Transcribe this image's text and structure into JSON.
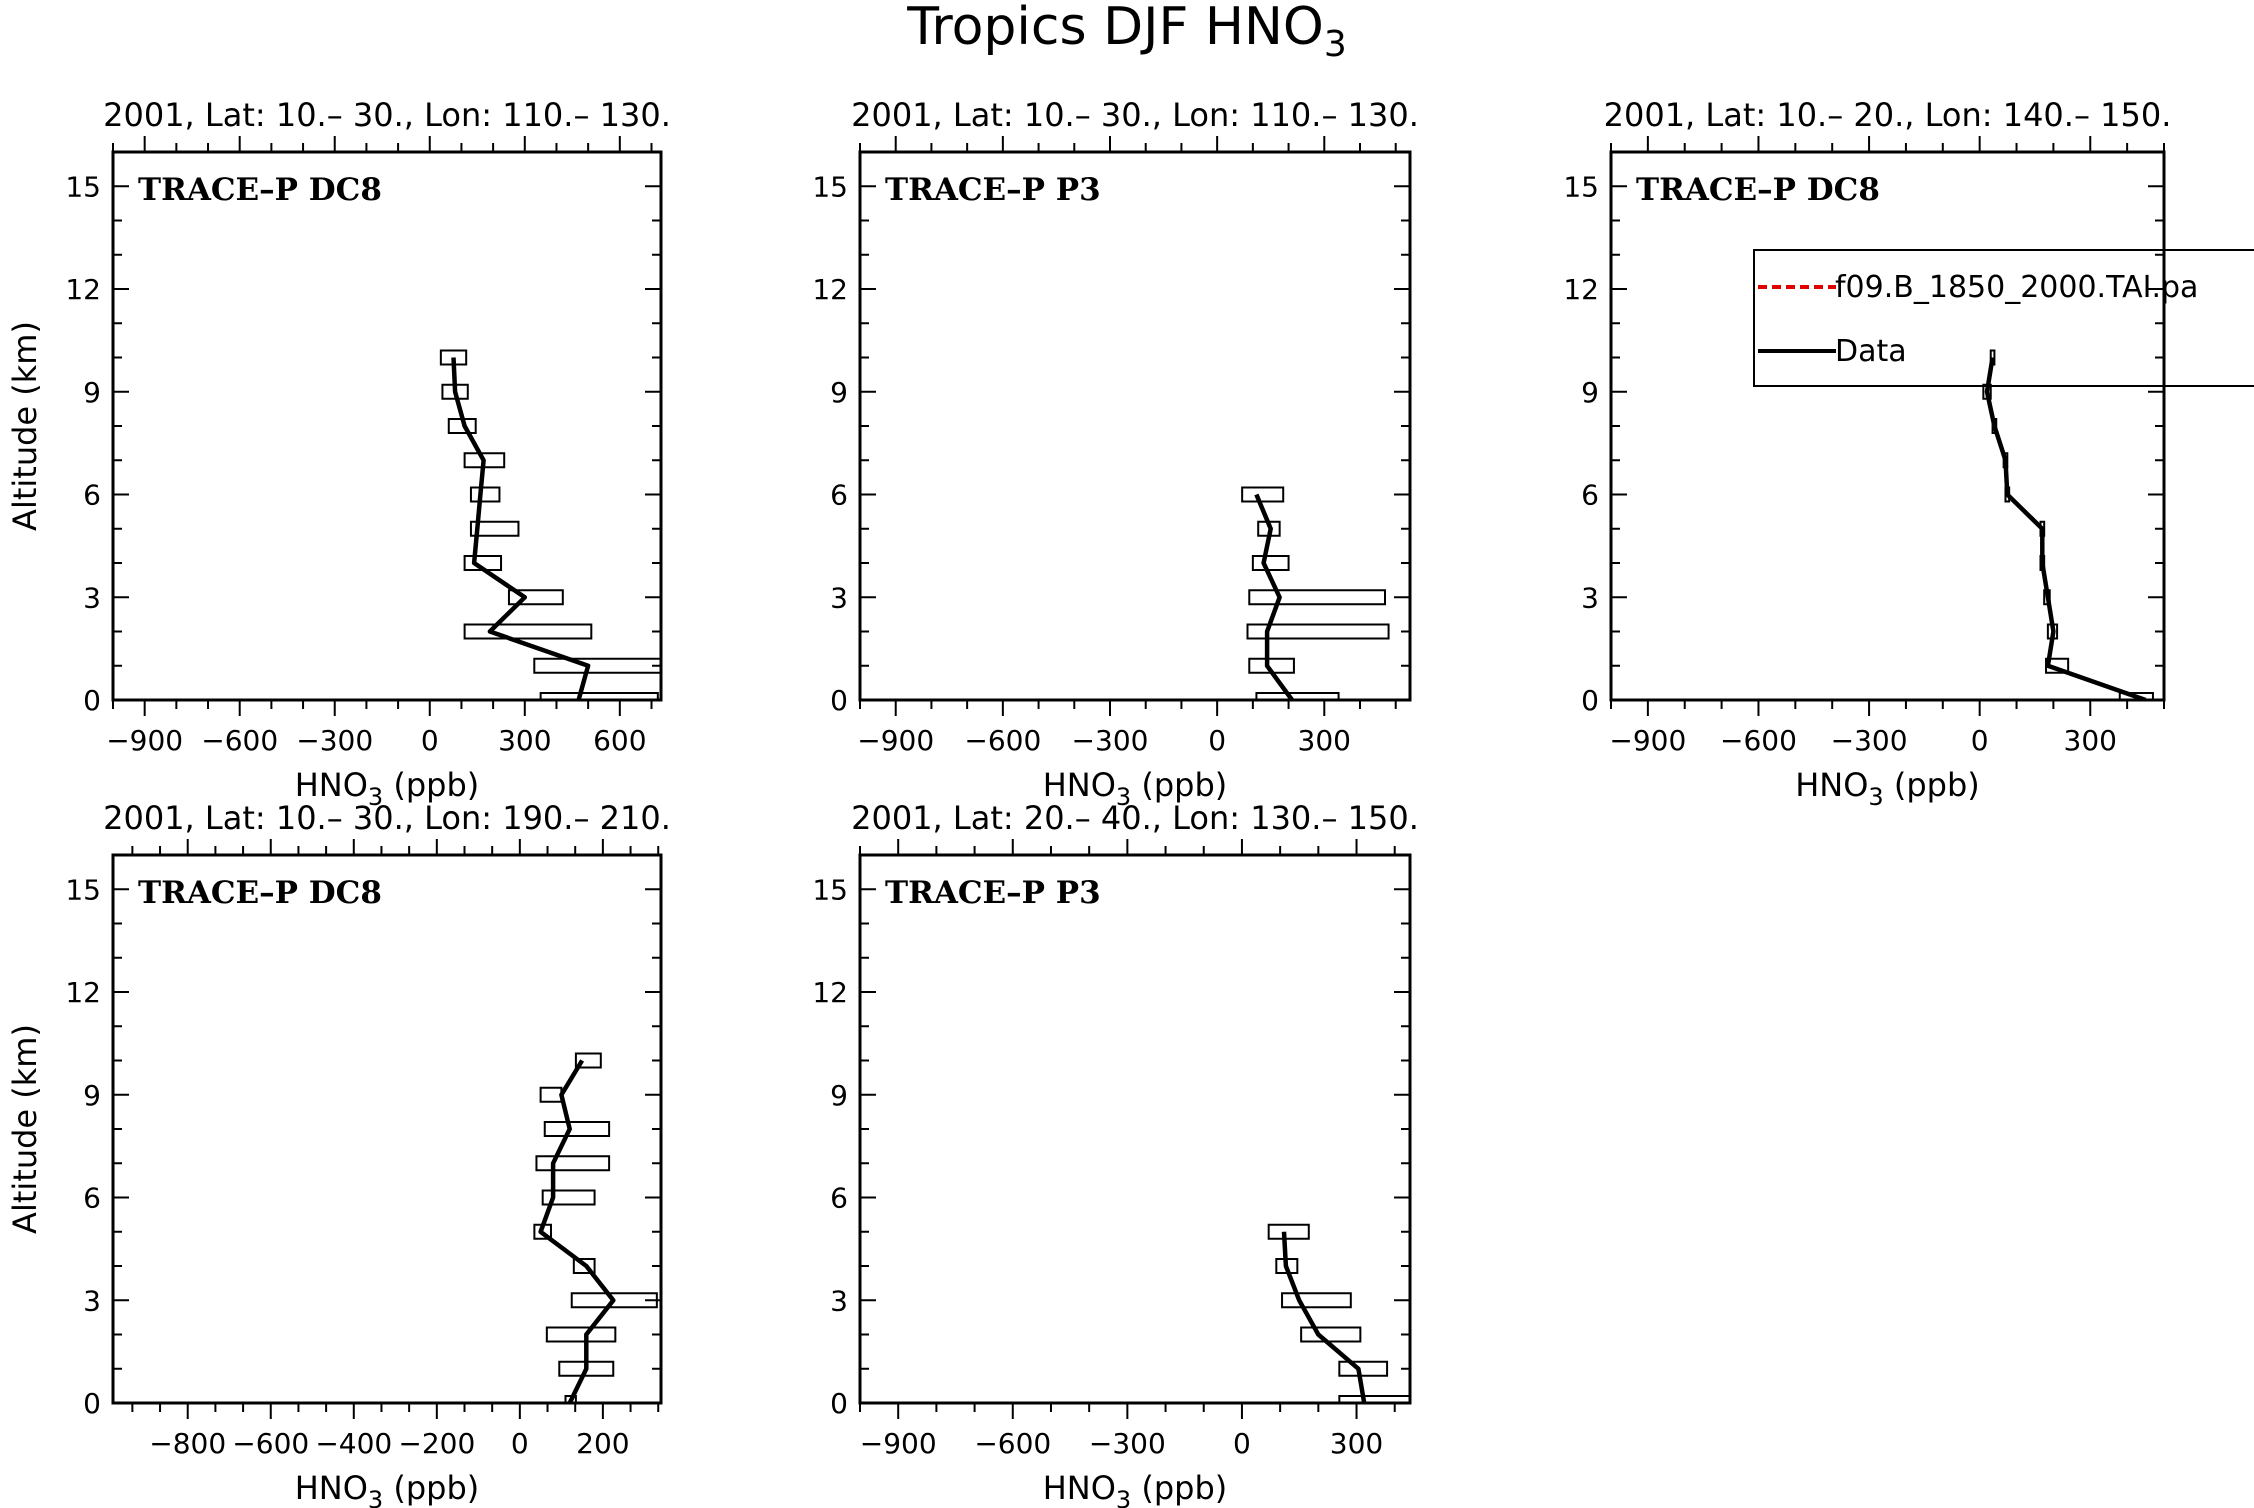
{
  "figure": {
    "title": "Tropics DJF HNO",
    "title_sub": "3"
  },
  "legend": {
    "entries": [
      {
        "label": "f09.B_1850_2000.TAI.pa",
        "color": "#e00000",
        "style": "dashed"
      },
      {
        "label": "Data",
        "color": "#000000",
        "style": "solid"
      }
    ]
  },
  "chart_data": [
    {
      "type": "line",
      "header": "2001, Lat: 10.– 30., Lon: 110.– 130.",
      "inset": "TRACE–P DC8",
      "xlabel": "HNO3 (ppb)",
      "ylabel": "Altitude (km)",
      "xlim": [
        -1000,
        730
      ],
      "xticks": [
        -900,
        -600,
        -300,
        0,
        300,
        600
      ],
      "xtick_labels": [
        "−900",
        "−600",
        "−300",
        "0",
        "300",
        "600"
      ],
      "ylim": [
        0,
        16
      ],
      "yticks": [
        0,
        3,
        6,
        9,
        12,
        15
      ],
      "ytick_labels": [
        "0",
        "3",
        "6",
        "9",
        "12",
        "15"
      ],
      "series": [
        {
          "name": "Data",
          "altitude": [
            0,
            1,
            2,
            3,
            4,
            5,
            6,
            7,
            8,
            9,
            10
          ],
          "values": [
            470,
            500,
            190,
            300,
            140,
            150,
            160,
            170,
            110,
            80,
            75
          ],
          "box_low": [
            350,
            330,
            110,
            250,
            110,
            130,
            130,
            110,
            60,
            40,
            35
          ],
          "box_high": [
            720,
            730,
            510,
            420,
            225,
            280,
            220,
            235,
            145,
            120,
            115
          ]
        }
      ]
    },
    {
      "type": "line",
      "header": "2001, Lat: 10.– 30., Lon: 110.– 130.",
      "inset": "TRACE–P P3",
      "xlabel": "HNO3 (ppb)",
      "ylabel": "",
      "xlim": [
        -1000,
        540
      ],
      "xticks": [
        -900,
        -600,
        -300,
        0,
        300
      ],
      "xtick_labels": [
        "−900",
        "−600",
        "−300",
        "0",
        "300"
      ],
      "ylim": [
        0,
        16
      ],
      "yticks": [
        0,
        3,
        6,
        9,
        12,
        15
      ],
      "ytick_labels": [
        "0",
        "3",
        "6",
        "9",
        "12",
        "15"
      ],
      "series": [
        {
          "name": "Data",
          "altitude": [
            0,
            1,
            2,
            3,
            4,
            5,
            6
          ],
          "values": [
            210,
            140,
            140,
            175,
            130,
            150,
            110
          ],
          "box_low": [
            110,
            90,
            85,
            90,
            100,
            115,
            70
          ],
          "box_high": [
            340,
            215,
            480,
            470,
            200,
            175,
            185
          ]
        }
      ]
    },
    {
      "type": "line",
      "header": "2001, Lat: 10.– 20., Lon: 140.– 150.",
      "inset": "TRACE–P DC8",
      "xlabel": "HNO3 (ppb)",
      "ylabel": "",
      "xlim": [
        -1000,
        500
      ],
      "xticks": [
        -900,
        -600,
        -300,
        0,
        300
      ],
      "xtick_labels": [
        "−900",
        "−600",
        "−300",
        "0",
        "300"
      ],
      "ylim": [
        0,
        16
      ],
      "yticks": [
        0,
        3,
        6,
        9,
        12,
        15
      ],
      "ytick_labels": [
        "0",
        "3",
        "6",
        "9",
        "12",
        "15"
      ],
      "series": [
        {
          "name": "Data",
          "altitude": [
            0,
            1,
            2,
            3,
            4,
            5,
            6,
            7,
            8,
            9,
            10
          ],
          "values": [
            450,
            185,
            200,
            185,
            170,
            170,
            75,
            70,
            40,
            20,
            35
          ],
          "box_low": [
            380,
            180,
            185,
            175,
            165,
            165,
            70,
            65,
            35,
            10,
            30
          ],
          "box_high": [
            470,
            240,
            210,
            190,
            175,
            175,
            80,
            75,
            45,
            30,
            40
          ]
        }
      ]
    },
    {
      "type": "line",
      "header": "2001, Lat: 10.– 30., Lon: 190.– 210.",
      "inset": "TRACE–P DC8",
      "xlabel": "HNO3 (ppb)",
      "ylabel": "Altitude (km)",
      "xlim": [
        -980,
        340
      ],
      "xticks": [
        -800,
        -600,
        -400,
        -200,
        0,
        200
      ],
      "xtick_labels": [
        "−800",
        "−600",
        "−400",
        "−200",
        "0",
        "200"
      ],
      "ylim": [
        0,
        16
      ],
      "yticks": [
        0,
        3,
        6,
        9,
        12,
        15
      ],
      "ytick_labels": [
        "0",
        "3",
        "6",
        "9",
        "12",
        "15"
      ],
      "series": [
        {
          "name": "Data",
          "altitude": [
            0,
            1,
            2,
            3,
            4,
            5,
            6,
            7,
            8,
            9,
            10
          ],
          "values": [
            120,
            160,
            160,
            225,
            160,
            50,
            80,
            80,
            120,
            100,
            150
          ],
          "box_low": [
            110,
            95,
            65,
            125,
            130,
            35,
            55,
            40,
            60,
            50,
            135
          ],
          "box_high": [
            135,
            225,
            230,
            330,
            180,
            75,
            180,
            215,
            215,
            100,
            195
          ]
        }
      ]
    },
    {
      "type": "line",
      "header": "2001, Lat: 20.– 40., Lon: 130.– 150.",
      "inset": "TRACE–P P3",
      "xlabel": "HNO3 (ppb)",
      "ylabel": "",
      "xlim": [
        -1000,
        440
      ],
      "xticks": [
        -900,
        -600,
        -300,
        0,
        300
      ],
      "xtick_labels": [
        "−900",
        "−600",
        "−300",
        "0",
        "300"
      ],
      "ylim": [
        0,
        16
      ],
      "yticks": [
        0,
        3,
        6,
        9,
        12,
        15
      ],
      "ytick_labels": [
        "0",
        "3",
        "6",
        "9",
        "12",
        "15"
      ],
      "series": [
        {
          "name": "Data",
          "altitude": [
            0,
            1,
            2,
            3,
            4,
            5
          ],
          "values": [
            320,
            305,
            200,
            150,
            115,
            110
          ],
          "box_low": [
            255,
            255,
            155,
            105,
            90,
            70
          ],
          "box_high": [
            440,
            380,
            310,
            285,
            145,
            175
          ]
        }
      ]
    }
  ]
}
